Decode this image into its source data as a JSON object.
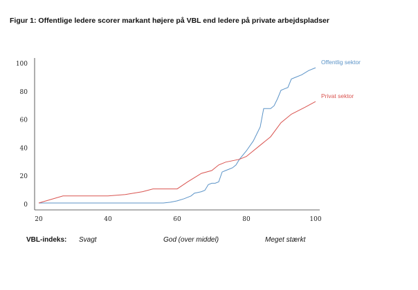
{
  "title": "Figur 1: Offentlige ledere scorer markant højere på VBL end ledere på private arbejdspladser",
  "vbl": {
    "label": "VBL-indeks:",
    "low": "Svagt",
    "mid": "God  (over middel)",
    "high": "Meget stærkt"
  },
  "chart_data": {
    "type": "line",
    "title": "Figur 1: Offentlige ledere scorer markant højere på VBL end ledere på private arbejdspladser",
    "xlim": [
      20,
      100
    ],
    "ylim": [
      0,
      100
    ],
    "x_ticks": [
      20,
      40,
      60,
      80,
      100
    ],
    "y_ticks": [
      0,
      20,
      40,
      60,
      80,
      100
    ],
    "grid": false,
    "series": [
      {
        "name": "Offentlig sektor",
        "color": "#5b93c7",
        "points": [
          [
            20,
            1
          ],
          [
            25,
            1
          ],
          [
            40,
            1
          ],
          [
            50,
            1
          ],
          [
            56,
            1
          ],
          [
            58,
            1.5
          ],
          [
            60,
            2.5
          ],
          [
            62,
            4
          ],
          [
            64,
            6
          ],
          [
            65,
            8
          ],
          [
            66,
            8.5
          ],
          [
            67,
            9
          ],
          [
            68,
            10
          ],
          [
            69,
            14
          ],
          [
            70,
            15
          ],
          [
            71,
            15
          ],
          [
            72,
            16
          ],
          [
            73,
            23
          ],
          [
            74,
            24
          ],
          [
            75,
            25
          ],
          [
            76,
            26
          ],
          [
            77,
            28
          ],
          [
            78,
            32
          ],
          [
            80,
            38
          ],
          [
            82,
            45
          ],
          [
            84,
            55
          ],
          [
            85,
            68
          ],
          [
            86,
            68
          ],
          [
            87,
            68
          ],
          [
            88,
            70
          ],
          [
            89,
            75
          ],
          [
            90,
            81
          ],
          [
            91,
            82
          ],
          [
            92,
            83
          ],
          [
            93,
            89
          ],
          [
            94,
            90
          ],
          [
            96,
            92
          ],
          [
            98,
            95
          ],
          [
            100,
            97
          ]
        ]
      },
      {
        "name": "Privat sektor",
        "color": "#d9534f",
        "points": [
          [
            20,
            1
          ],
          [
            27,
            6
          ],
          [
            40,
            6
          ],
          [
            45,
            7
          ],
          [
            50,
            9
          ],
          [
            53,
            11
          ],
          [
            60,
            11
          ],
          [
            63,
            16
          ],
          [
            67,
            22
          ],
          [
            70,
            24
          ],
          [
            72,
            28
          ],
          [
            74,
            30
          ],
          [
            78,
            32
          ],
          [
            80,
            34
          ],
          [
            84,
            42
          ],
          [
            87,
            48
          ],
          [
            90,
            58
          ],
          [
            93,
            64
          ],
          [
            97,
            69
          ],
          [
            100,
            73
          ]
        ]
      }
    ]
  }
}
